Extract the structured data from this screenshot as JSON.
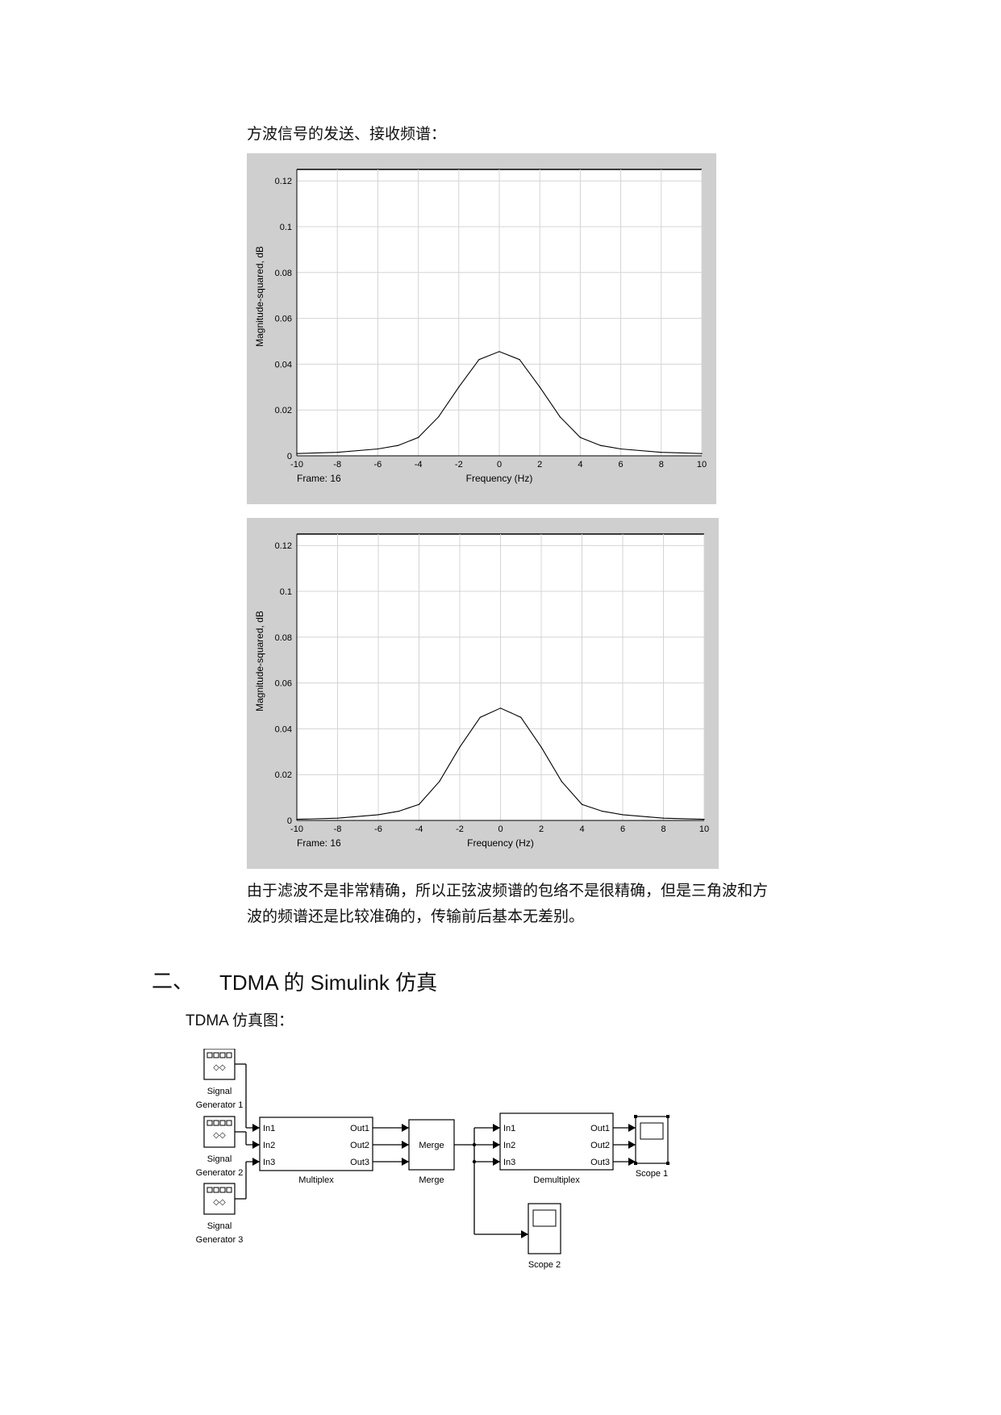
{
  "section_caption": "方波信号的发送、接收频谱：",
  "plots": [
    {
      "ylabel": "Magnitude-squared, dB",
      "xlabel": "Frequency (Hz)",
      "frame_label": "Frame: 16",
      "ytick_labels": [
        "0",
        "0.02",
        "0.04",
        "0.06",
        "0.08",
        "0.1",
        "0.12"
      ],
      "xtick_labels": [
        "-10",
        "-8",
        "-6",
        "-4",
        "-2",
        "0",
        "2",
        "4",
        "6",
        "8",
        "10"
      ]
    },
    {
      "ylabel": "Magnitude-squared, dB",
      "xlabel": "Frequency (Hz)",
      "frame_label": "Frame: 16",
      "ytick_labels": [
        "0",
        "0.02",
        "0.04",
        "0.06",
        "0.08",
        "0.1",
        "0.12"
      ],
      "xtick_labels": [
        "-10",
        "-8",
        "-6",
        "-4",
        "-2",
        "0",
        "2",
        "4",
        "6",
        "8",
        "10"
      ]
    }
  ],
  "chart_data": [
    {
      "type": "line",
      "xlabel": "Frequency (Hz)",
      "ylabel": "Magnitude-squared, dB",
      "xlim": [
        -10,
        10
      ],
      "ylim": [
        0,
        0.125
      ],
      "grid": true,
      "x": [
        -10,
        -8,
        -6,
        -5,
        -4,
        -3,
        -2,
        -1,
        0,
        1,
        2,
        3,
        4,
        5,
        6,
        8,
        10
      ],
      "series": [
        {
          "values": [
            0.001,
            0.0015,
            0.003,
            0.0045,
            0.008,
            0.017,
            0.03,
            0.042,
            0.0455,
            0.042,
            0.03,
            0.017,
            0.008,
            0.0045,
            0.003,
            0.0015,
            0.001
          ]
        }
      ]
    },
    {
      "type": "line",
      "xlabel": "Frequency (Hz)",
      "ylabel": "Magnitude-squared, dB",
      "xlim": [
        -10,
        10
      ],
      "ylim": [
        0,
        0.125
      ],
      "grid": true,
      "x": [
        -10,
        -8,
        -6,
        -5,
        -4,
        -3,
        -2,
        -1,
        0,
        1,
        2,
        3,
        4,
        5,
        6,
        8,
        10
      ],
      "series": [
        {
          "values": [
            0.0005,
            0.001,
            0.0025,
            0.004,
            0.007,
            0.017,
            0.032,
            0.045,
            0.049,
            0.045,
            0.032,
            0.017,
            0.007,
            0.004,
            0.0025,
            0.001,
            0.0005
          ]
        }
      ]
    }
  ],
  "conclusion_line1": "由于滤波不是非常精确，所以正弦波频谱的包络不是很精确，但是三角波和方",
  "conclusion_line2": "波的频谱还是比较准确的，传输前后基本无差别。",
  "section_heading": {
    "number": "二、",
    "title": "TDMA 的 Simulink 仿真"
  },
  "diagram_caption": "TDMA 仿真图：",
  "diagram": {
    "generators": [
      "Signal Generator 1",
      "Signal Generator 2",
      "Signal Generator 3"
    ],
    "multiplex": {
      "name": "Multiplex",
      "inputs": [
        "In1",
        "In2",
        "In3"
      ],
      "outputs": [
        "Out1",
        "Out2",
        "Out3"
      ]
    },
    "merge": {
      "label": "Merge",
      "name": "Merge"
    },
    "demultiplex": {
      "name": "Demultiplex",
      "inputs": [
        "In1",
        "In2",
        "In3"
      ],
      "outputs": [
        "Out1",
        "Out2",
        "Out3"
      ]
    },
    "scope1": "Scope 1",
    "scope2": "Scope 2"
  }
}
